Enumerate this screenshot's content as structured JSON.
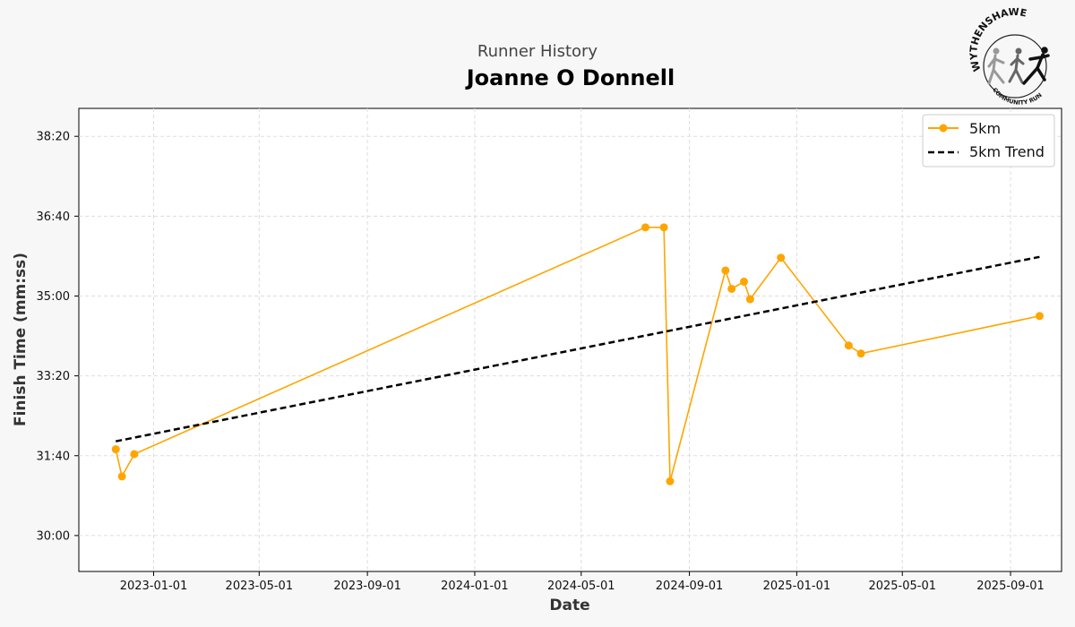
{
  "header": {
    "subtitle": "Runner History",
    "title": "Joanne O Donnell"
  },
  "logo": {
    "top_text": "WYTHENSHAWE",
    "bottom_text": "COMMUNITY RUN"
  },
  "chart_data": {
    "type": "line",
    "xlabel": "Date",
    "ylabel": "Finish Time (mm:ss)",
    "x_ticks": [
      "2023-01-01",
      "2023-05-01",
      "2023-09-01",
      "2024-01-01",
      "2024-05-01",
      "2024-09-01",
      "2025-01-01",
      "2025-05-01",
      "2025-09-01"
    ],
    "y_ticks": [
      "30:00",
      "31:40",
      "33:20",
      "35:00",
      "36:40",
      "38:20"
    ],
    "xlim": [
      "2022-10-08",
      "2025-10-29"
    ],
    "ylim": [
      "29:15",
      "38:55"
    ],
    "grid": true,
    "legend_position": "top-right",
    "series": [
      {
        "name": "5km",
        "style": "line-with-markers",
        "color": "#ffa500",
        "points": [
          {
            "x": "2022-11-19",
            "y": "31:48"
          },
          {
            "x": "2022-11-26",
            "y": "31:14"
          },
          {
            "x": "2022-12-10",
            "y": "31:42"
          },
          {
            "x": "2024-07-13",
            "y": "36:26"
          },
          {
            "x": "2024-08-03",
            "y": "36:26"
          },
          {
            "x": "2024-08-10",
            "y": "31:08"
          },
          {
            "x": "2024-10-12",
            "y": "35:32"
          },
          {
            "x": "2024-10-19",
            "y": "35:09"
          },
          {
            "x": "2024-11-02",
            "y": "35:18"
          },
          {
            "x": "2024-11-09",
            "y": "34:56"
          },
          {
            "x": "2024-12-14",
            "y": "35:48"
          },
          {
            "x": "2025-03-01",
            "y": "33:58"
          },
          {
            "x": "2025-03-15",
            "y": "33:48"
          },
          {
            "x": "2025-10-04",
            "y": "34:35"
          }
        ]
      },
      {
        "name": "5km Trend",
        "style": "dashed",
        "color": "#000000",
        "points": [
          {
            "x": "2022-11-19",
            "y": "31:58"
          },
          {
            "x": "2025-10-04",
            "y": "35:49"
          }
        ]
      }
    ]
  }
}
